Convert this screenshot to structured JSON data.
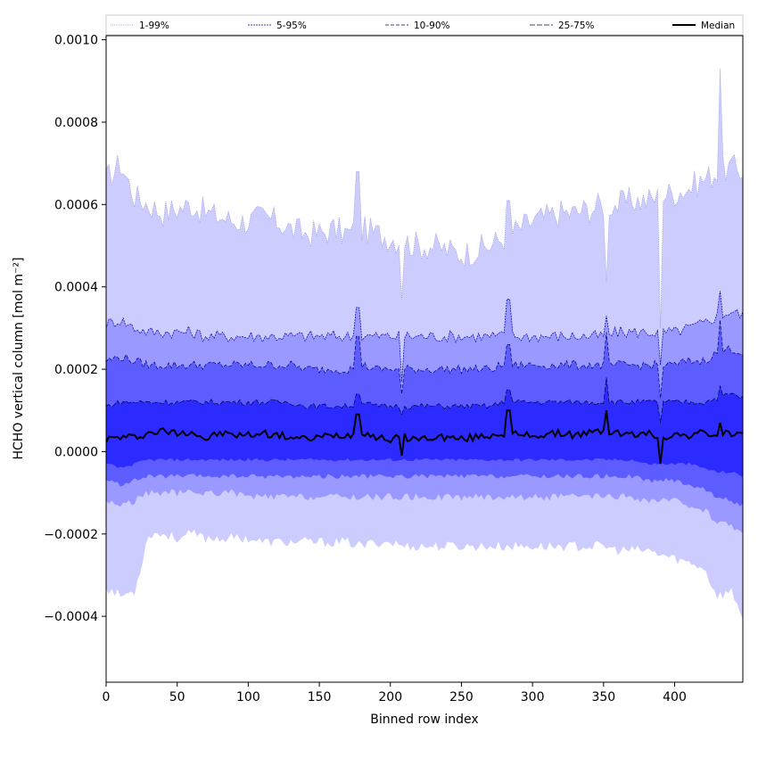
{
  "chart_data": {
    "type": "area",
    "title": "",
    "xlabel": "Binned row index",
    "ylabel": "HCHO vertical column [mol m⁻²]",
    "xlim": [
      0,
      448
    ],
    "ylim": [
      -0.00056,
      0.00101
    ],
    "xticks": [
      0,
      50,
      100,
      150,
      200,
      250,
      300,
      350,
      400
    ],
    "xtick_labels": [
      "0",
      "50",
      "100",
      "150",
      "200",
      "250",
      "300",
      "350",
      "400"
    ],
    "yticks": [
      -0.0004,
      -0.0002,
      0.0,
      0.0002,
      0.0004,
      0.0006,
      0.0008,
      0.001
    ],
    "ytick_labels": [
      "−0.0004",
      "−0.0002",
      "0.0000",
      "0.0002",
      "0.0004",
      "0.0006",
      "0.0008",
      "0.0010"
    ],
    "grid": false,
    "legend_position": "top",
    "x": [
      0,
      10,
      20,
      30,
      40,
      50,
      60,
      70,
      80,
      90,
      100,
      110,
      120,
      130,
      140,
      150,
      160,
      170,
      180,
      190,
      200,
      210,
      220,
      230,
      240,
      250,
      260,
      270,
      280,
      290,
      300,
      310,
      320,
      330,
      340,
      350,
      360,
      370,
      380,
      390,
      400,
      410,
      420,
      430,
      440,
      448
    ],
    "bands": [
      {
        "name": "1-99%",
        "color": "#ccccff",
        "line_color": "#9999dd",
        "dash": "1,1",
        "upper": [
          0.00066,
          0.0007,
          0.00062,
          0.0006,
          0.00058,
          0.00059,
          0.0006,
          0.00058,
          0.00057,
          0.00056,
          0.00056,
          0.00057,
          0.00056,
          0.00054,
          0.00053,
          0.00053,
          0.00054,
          0.00053,
          0.00054,
          0.00053,
          0.00052,
          0.00051,
          0.0005,
          0.0005,
          0.00049,
          0.00048,
          0.00049,
          0.0005,
          0.00052,
          0.00054,
          0.00056,
          0.00057,
          0.00058,
          0.00058,
          0.00059,
          0.0006,
          0.0006,
          0.00061,
          0.00061,
          0.00062,
          0.00063,
          0.00064,
          0.00066,
          0.00068,
          0.00069,
          0.00068
        ],
        "lower": [
          -0.00033,
          -0.00035,
          -0.00034,
          -0.0002,
          -0.0002,
          -0.00021,
          -0.0002,
          -0.00021,
          -0.00021,
          -0.00021,
          -0.00021,
          -0.00022,
          -0.00022,
          -0.00022,
          -0.00022,
          -0.00022,
          -0.00022,
          -0.00022,
          -0.00023,
          -0.00022,
          -0.00022,
          -0.00023,
          -0.00023,
          -0.00023,
          -0.00023,
          -0.00023,
          -0.00023,
          -0.00023,
          -0.00023,
          -0.00023,
          -0.00023,
          -0.00023,
          -0.00023,
          -0.00023,
          -0.00023,
          -0.00023,
          -0.00024,
          -0.00024,
          -0.00024,
          -0.00025,
          -0.00026,
          -0.00027,
          -0.00028,
          -0.00035,
          -0.00034,
          -0.0004
        ]
      },
      {
        "name": "5-95%",
        "color": "#9999ff",
        "line_color": "#0000aa",
        "dash": "2,1",
        "upper": [
          0.00031,
          0.00032,
          0.0003,
          0.00029,
          0.00029,
          0.00029,
          0.00029,
          0.00028,
          0.00028,
          0.00028,
          0.00028,
          0.00028,
          0.00028,
          0.00028,
          0.00028,
          0.00028,
          0.00028,
          0.00028,
          0.00028,
          0.00028,
          0.00028,
          0.00028,
          0.00028,
          0.00028,
          0.00028,
          0.00028,
          0.00028,
          0.00028,
          0.00028,
          0.00028,
          0.00028,
          0.00028,
          0.00028,
          0.00028,
          0.00028,
          0.00028,
          0.00029,
          0.00029,
          0.00029,
          0.00029,
          0.00029,
          0.0003,
          0.00031,
          0.00033,
          0.00034,
          0.00033
        ],
        "lower": [
          -0.00012,
          -0.00013,
          -0.00012,
          -0.0001,
          -0.0001,
          -0.0001,
          -0.0001,
          -0.0001,
          -0.0001,
          -0.0001,
          -0.00011,
          -0.00011,
          -0.00011,
          -0.00011,
          -0.00011,
          -0.00011,
          -0.00011,
          -0.00011,
          -0.00011,
          -0.00011,
          -0.00011,
          -0.00011,
          -0.00011,
          -0.00011,
          -0.00011,
          -0.00011,
          -0.00011,
          -0.00011,
          -0.00011,
          -0.00011,
          -0.00011,
          -0.00011,
          -0.00011,
          -0.00011,
          -0.00011,
          -0.00011,
          -0.00011,
          -0.00011,
          -0.00012,
          -0.00012,
          -0.00012,
          -0.00013,
          -0.00014,
          -0.00017,
          -0.00018,
          -0.0002
        ]
      },
      {
        "name": "10-90%",
        "color": "#5c5cff",
        "line_color": "#000077",
        "dash": "4,2",
        "upper": [
          0.00022,
          0.00023,
          0.00022,
          0.00021,
          0.00021,
          0.00021,
          0.00021,
          0.00021,
          0.00021,
          0.00021,
          0.00021,
          0.00021,
          0.00021,
          0.00021,
          0.0002,
          0.0002,
          0.0002,
          0.0002,
          0.00021,
          0.0002,
          0.0002,
          0.0002,
          0.0002,
          0.0002,
          0.0002,
          0.0002,
          0.0002,
          0.0002,
          0.00021,
          0.00021,
          0.00021,
          0.00021,
          0.00021,
          0.00021,
          0.00021,
          0.00021,
          0.00021,
          0.00021,
          0.00021,
          0.00021,
          0.00021,
          0.00022,
          0.00022,
          0.00024,
          0.00025,
          0.00024
        ],
        "lower": [
          -7e-05,
          -8e-05,
          -7e-05,
          -6e-05,
          -6e-05,
          -6e-05,
          -6e-05,
          -6e-05,
          -6e-05,
          -6e-05,
          -6e-05,
          -6e-05,
          -6e-05,
          -6e-05,
          -6e-05,
          -6e-05,
          -6e-05,
          -6e-05,
          -6e-05,
          -6e-05,
          -6e-05,
          -6e-05,
          -6e-05,
          -6e-05,
          -6e-05,
          -6e-05,
          -6e-05,
          -6e-05,
          -6e-05,
          -6e-05,
          -6e-05,
          -6e-05,
          -6e-05,
          -6e-05,
          -6e-05,
          -6e-05,
          -6e-05,
          -6e-05,
          -7e-05,
          -7e-05,
          -7e-05,
          -8e-05,
          -9e-05,
          -0.00011,
          -0.00012,
          -0.00013
        ]
      },
      {
        "name": "25-75%",
        "color": "#2b2bff",
        "line_color": "#000044",
        "dash": "6,2",
        "upper": [
          0.00011,
          0.00012,
          0.00012,
          0.00012,
          0.00012,
          0.00012,
          0.00012,
          0.00012,
          0.00012,
          0.00012,
          0.00012,
          0.00012,
          0.00012,
          0.00012,
          0.00011,
          0.00011,
          0.00011,
          0.00011,
          0.00012,
          0.00011,
          0.00011,
          0.00011,
          0.00011,
          0.00011,
          0.00011,
          0.00011,
          0.00011,
          0.00011,
          0.00012,
          0.00012,
          0.00012,
          0.00012,
          0.00012,
          0.00012,
          0.00012,
          0.00012,
          0.00012,
          0.00012,
          0.00012,
          0.00012,
          0.00012,
          0.00012,
          0.00012,
          0.00013,
          0.00014,
          0.00013
        ],
        "lower": [
          -3e-05,
          -4e-05,
          -3e-05,
          -2e-05,
          -2e-05,
          -2e-05,
          -2e-05,
          -2e-05,
          -2e-05,
          -2e-05,
          -2e-05,
          -2e-05,
          -2e-05,
          -2e-05,
          -2e-05,
          -2e-05,
          -2e-05,
          -2e-05,
          -2e-05,
          -2e-05,
          -2e-05,
          -2e-05,
          -2e-05,
          -2e-05,
          -2e-05,
          -2e-05,
          -2e-05,
          -2e-05,
          -2e-05,
          -2e-05,
          -2e-05,
          -2e-05,
          -2e-05,
          -2e-05,
          -2e-05,
          -2e-05,
          -2e-05,
          -2e-05,
          -3e-05,
          -3e-05,
          -3e-05,
          -3e-05,
          -4e-05,
          -5e-05,
          -5e-05,
          -6e-05
        ]
      }
    ],
    "series": [
      {
        "name": "Median",
        "color": "#000000",
        "values": [
          3e-05,
          3.5e-05,
          3.5e-05,
          4.5e-05,
          5e-05,
          4.5e-05,
          5e-05,
          3e-05,
          4.5e-05,
          4e-05,
          4e-05,
          4.5e-05,
          4e-05,
          3.5e-05,
          3e-05,
          3.5e-05,
          4e-05,
          4e-05,
          5e-05,
          3.5e-05,
          3e-05,
          3.5e-05,
          3e-05,
          3.5e-05,
          3.5e-05,
          3e-05,
          3.5e-05,
          4e-05,
          4.5e-05,
          4e-05,
          4e-05,
          4e-05,
          4.5e-05,
          4e-05,
          4.5e-05,
          5e-05,
          4.5e-05,
          4e-05,
          4.5e-05,
          3.5e-05,
          4e-05,
          4e-05,
          4.5e-05,
          4e-05,
          4.5e-05,
          4e-05
        ]
      }
    ],
    "spikes": [
      {
        "x": 352,
        "values": [
          0.00041,
          0.00033,
          0.00029,
          0.00018,
          0.0001
        ]
      },
      {
        "x": 177,
        "values": [
          0.00068,
          0.00035,
          0.00028,
          0.00014,
          9e-05
        ]
      },
      {
        "x": 390,
        "values": [
          0.0003,
          0.00021,
          0.00013,
          7e-05,
          -3e-05
        ]
      },
      {
        "x": 432,
        "values": [
          0.00093,
          0.00039,
          0.00032,
          0.00016,
          7e-05
        ]
      },
      {
        "x": 283,
        "values": [
          0.00061,
          0.00037,
          0.00026,
          0.00015,
          0.0001
        ]
      },
      {
        "x": 208,
        "values": [
          0.00037,
          0.00017,
          0.00014,
          9e-05,
          -1e-05
        ]
      }
    ]
  }
}
